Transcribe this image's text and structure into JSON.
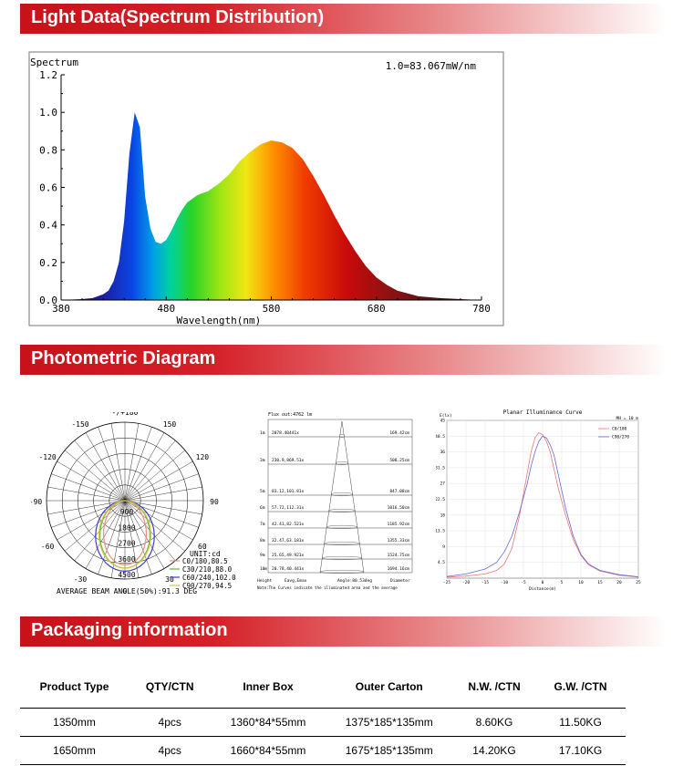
{
  "sections": {
    "light_data": "Light Data(Spectrum Distribution)",
    "photometric": "Photometric Diagram",
    "packaging": "Packaging information"
  },
  "chart_data": [
    {
      "type": "area",
      "title": "Spectrum",
      "annotation": "1.0=83.067mW/nm",
      "xlabel": "Wavelength(nm)",
      "ylabel": "Spectrum",
      "xlim": [
        380,
        780
      ],
      "ylim": [
        0,
        1.2
      ],
      "xticks": [
        "380",
        "480",
        "580",
        "680",
        "780"
      ],
      "yticks": [
        "0.0",
        "0.2",
        "0.4",
        "0.6",
        "0.8",
        "1.0",
        "1.2"
      ],
      "x": [
        380,
        400,
        410,
        420,
        425,
        430,
        435,
        440,
        445,
        450,
        455,
        460,
        465,
        470,
        475,
        480,
        485,
        490,
        495,
        500,
        510,
        520,
        530,
        540,
        550,
        560,
        570,
        580,
        590,
        600,
        610,
        620,
        630,
        640,
        650,
        660,
        670,
        680,
        690,
        700,
        720,
        740,
        760,
        780
      ],
      "y": [
        0.0,
        0.005,
        0.01,
        0.03,
        0.05,
        0.1,
        0.2,
        0.42,
        0.78,
        1.0,
        0.92,
        0.55,
        0.38,
        0.31,
        0.3,
        0.32,
        0.37,
        0.43,
        0.48,
        0.52,
        0.56,
        0.58,
        0.62,
        0.67,
        0.74,
        0.79,
        0.83,
        0.85,
        0.84,
        0.81,
        0.75,
        0.66,
        0.56,
        0.45,
        0.35,
        0.26,
        0.18,
        0.12,
        0.08,
        0.05,
        0.02,
        0.01,
        0.005,
        0.0
      ]
    },
    {
      "type": "polar",
      "unit": "UNIT:cd",
      "angle_labels": [
        "-/+180",
        "150",
        "120",
        "90",
        "60",
        "30",
        "0",
        "-30",
        "-60",
        "-90",
        "-120",
        "-150"
      ],
      "radial_labels": [
        "900",
        "1800",
        "2700",
        "3600",
        "4500"
      ],
      "series": [
        {
          "name": "C0/180,80.5",
          "color": "#f08a80"
        },
        {
          "name": "C30/210,88.0",
          "color": "#5ab43c"
        },
        {
          "name": "C60/240,102.0",
          "color": "#3c3cd2"
        },
        {
          "name": "C90/270,94.5",
          "color": "#d2c832"
        }
      ],
      "footer": "AVERAGE BEAM ANGLE(50%):91.3 DEG"
    },
    {
      "type": "cone",
      "title": "Flux out:4762 lm",
      "rows": [
        {
          "h": "1m",
          "e": "2078.40441x",
          "d": "169.42cm"
        },
        {
          "h": "3m",
          "e": "230.9,869.51x",
          "d": "508.25cm"
        },
        {
          "h": "5m",
          "e": "83.12,101.81x",
          "d": "847.08cm"
        },
        {
          "h": "6m",
          "e": "57.72,112.31x",
          "d": "1016.50cm"
        },
        {
          "h": "7m",
          "e": "42.41,82.521x",
          "d": "1185.92cm"
        },
        {
          "h": "8m",
          "e": "32.47,63.181x",
          "d": "1355.33cm"
        },
        {
          "h": "9m",
          "e": "25.65,49.921x",
          "d": "1524.75cm"
        },
        {
          "h": "10m",
          "e": "20.78,40.441x",
          "d": "1694.16cm"
        }
      ],
      "col_headers": [
        "Height",
        "Eavg,Emax",
        "Angle:80.53deg",
        "Diameter"
      ],
      "note": "Note:The Curves indicate the illuminated area and the average"
    },
    {
      "type": "line",
      "title": "Planar Illuminance Curve",
      "mh_label": "MH = 10 m",
      "ylabel": "E(lx)",
      "xlabel": "Distance(m)",
      "xlim": [
        -25,
        25
      ],
      "ylim": [
        0,
        45
      ],
      "xticks": [
        "-25",
        "-20",
        "-15",
        "-10",
        "-5",
        "0",
        "5",
        "10",
        "15",
        "20",
        "25"
      ],
      "yticks": [
        "4.5",
        "9",
        "13.5",
        "18",
        "22.5",
        "27",
        "31.5",
        "36",
        "40.5",
        "45"
      ],
      "series": [
        {
          "name": "C0/180",
          "color": "#e87878",
          "x": [
            -25,
            -20,
            -15,
            -12,
            -10,
            -8,
            -6,
            -4,
            -3,
            -2,
            -1,
            0,
            1,
            2,
            3,
            4,
            6,
            8,
            10,
            12,
            15,
            20,
            25
          ],
          "y": [
            0.3,
            0.6,
            1.2,
            2.2,
            4.0,
            8.5,
            18,
            30,
            36,
            40,
            41.5,
            41,
            39,
            36,
            31,
            26,
            18,
            11,
            6.5,
            3.8,
            2.0,
            0.8,
            0.3
          ]
        },
        {
          "name": "C90/270",
          "color": "#6868d8",
          "x": [
            -25,
            -20,
            -15,
            -12,
            -10,
            -8,
            -6,
            -4,
            -3,
            -2,
            -1,
            0,
            1,
            2,
            3,
            4,
            6,
            8,
            10,
            12,
            15,
            20,
            25
          ],
          "y": [
            0.5,
            1.2,
            2.6,
            4.5,
            7.5,
            12,
            19,
            27,
            32,
            36,
            39,
            40.5,
            40,
            38,
            35,
            30,
            20,
            12,
            6.8,
            4.0,
            2.2,
            1.0,
            0.4
          ]
        }
      ]
    }
  ],
  "table": {
    "headers": [
      "Product Type",
      "QTY/CTN",
      "Inner Box",
      "Outer Carton",
      "N.W. /CTN",
      "G.W. /CTN"
    ],
    "rows": [
      [
        "1350mm",
        "4pcs",
        "1360*84*55mm",
        "1375*185*135mm",
        "8.60KG",
        "11.50KG"
      ],
      [
        "1650mm",
        "4pcs",
        "1660*84*55mm",
        "1675*185*135mm",
        "14.20KG",
        "17.10KG"
      ]
    ]
  }
}
